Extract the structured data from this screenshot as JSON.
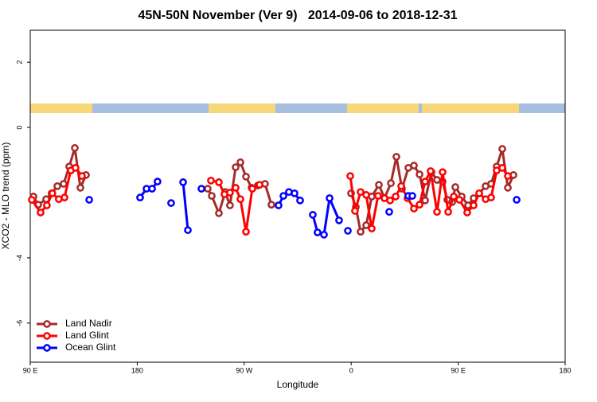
{
  "chart_data": {
    "type": "line",
    "title": "45N-50N November (Ver 9)   2014-09-06 to 2018-12-31",
    "xlabel": "Longitude",
    "ylabel": "XCO2 - MLO trend (ppm)",
    "xlim": [
      90,
      540
    ],
    "xticks": [
      {
        "value": 90,
        "label": "90 E"
      },
      {
        "value": 180,
        "label": "180"
      },
      {
        "value": 270,
        "label": "90 W"
      },
      {
        "value": 360,
        "label": "0"
      },
      {
        "value": 450,
        "label": "90 E"
      },
      {
        "value": 540,
        "label": "180"
      }
    ],
    "ylim": [
      -7.2,
      2.98
    ],
    "yticks": [
      -6,
      -4,
      0,
      2
    ],
    "legend": "bottom-left",
    "series": [
      {
        "name": "Land Nadir",
        "color": "#a52a2a",
        "x": [
          92.7,
          96.7,
          103.4,
          108,
          112.8,
          118.1,
          122.8,
          127.5,
          132.2,
          136.9,
          null,
          239.3,
          242.7,
          248.7,
          254,
          258,
          262.8,
          266.8,
          271.5,
          276.2,
          281.5,
          287.5,
          292.9,
          null,
          359.9,
          363.9,
          367.9,
          372.6,
          377.3,
          383.3,
          388,
          393.4,
          398,
          402.7,
          408.1,
          412.8,
          417.5,
          422.2,
          427.5,
          432.2,
          436.9,
          440.9,
          444.9,
          447.6,
          453,
          458.3,
          463,
          467.7,
          473.1,
          477.7,
          482.4,
          487.1,
          491.8,
          496.5
        ],
        "values": [
          -2.12,
          -2.37,
          -2.2,
          -2.02,
          -1.8,
          -1.73,
          -1.2,
          -0.63,
          -1.85,
          -1.46,
          null,
          -1.88,
          -2.1,
          -2.63,
          -1.98,
          -2.39,
          -1.22,
          -1.07,
          -1.51,
          -1.85,
          -1.78,
          -1.73,
          -2.37,
          null,
          -2.02,
          -2.44,
          -3.2,
          -3.0,
          -2.12,
          -1.76,
          -2.17,
          -1.71,
          -0.9,
          -1.88,
          -1.24,
          -1.17,
          -1.44,
          -2.24,
          -1.37,
          -1.61,
          -1.66,
          -2.22,
          -2.29,
          -1.83,
          -2.12,
          -2.39,
          -2.17,
          -2.02,
          -1.8,
          -1.73,
          -1.2,
          -0.66,
          -1.85,
          -1.46
        ]
      },
      {
        "name": "Land Glint",
        "color": "#ff0000",
        "x": [
          91.3,
          98.7,
          104,
          108.6,
          114,
          118.8,
          124.1,
          128.1,
          133.5,
          null,
          242,
          248.7,
          253.4,
          258,
          262.8,
          266.8,
          271.5,
          276.8,
          282.9,
          null,
          359.2,
          363.2,
          367.9,
          372.6,
          377.3,
          382.6,
          388,
          392.7,
          397.4,
          402.1,
          407.4,
          412.8,
          417.5,
          422.2,
          426.8,
          432.2,
          436.9,
          441.6,
          446.3,
          451,
          457.6,
          463,
          467.7,
          473.1,
          477.7,
          482.4,
          487.1,
          491.8
        ],
        "values": [
          -2.22,
          -2.61,
          -2.39,
          -2.02,
          -2.2,
          -2.15,
          -1.32,
          -1.24,
          -1.49,
          null,
          -1.63,
          -1.68,
          -2.05,
          -2.0,
          -1.85,
          -2.2,
          -3.2,
          -1.88,
          -1.76,
          null,
          -1.49,
          -2.56,
          -1.98,
          -2.07,
          -3.1,
          -2.1,
          -2.17,
          -2.24,
          -2.12,
          -1.8,
          -2.17,
          -2.49,
          -2.37,
          -1.66,
          -1.34,
          -2.59,
          -1.37,
          -2.59,
          -2.12,
          -2.22,
          -2.61,
          -2.39,
          -2.02,
          -2.2,
          -2.15,
          -1.32,
          -1.24,
          -1.49
        ]
      },
      {
        "name": "Ocean Glint",
        "color": "#0000ff",
        "x": [
          139.6,
          null,
          182.4,
          187.8,
          192.5,
          197.1,
          null,
          208.5,
          null,
          218.6,
          222.6,
          null,
          234,
          null,
          298.9,
          303,
          307.6,
          312.3,
          317,
          null,
          327.7,
          331.7,
          337.1,
          341.8,
          349.8,
          null,
          357.2,
          null,
          392,
          null,
          408.1,
          411.4,
          null,
          499.2
        ],
        "values": [
          -2.22,
          null,
          -2.15,
          -1.88,
          -1.88,
          -1.66,
          null,
          -2.32,
          null,
          -1.68,
          -3.15,
          null,
          -1.88,
          null,
          -2.39,
          -2.1,
          -1.98,
          -2.02,
          -2.24,
          null,
          -2.68,
          -3.22,
          -3.29,
          -2.17,
          -2.85,
          null,
          -3.17,
          null,
          -2.59,
          null,
          -2.1,
          -2.1,
          null,
          -2.22
        ]
      }
    ]
  }
}
